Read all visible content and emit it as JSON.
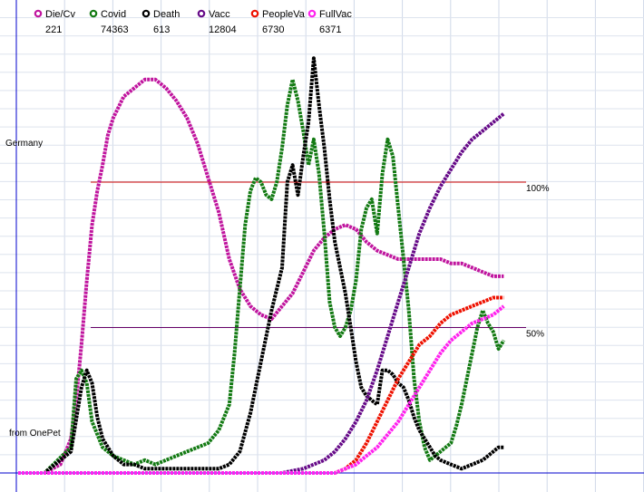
{
  "chart_data": {
    "type": "line",
    "country_label": "Germany",
    "source_label": "from OnePet",
    "x_range": [
      0,
      100
    ],
    "y_range": [
      0,
      100
    ],
    "grid": true,
    "legend_placement": "top",
    "reference_lines": [
      {
        "label": "100%",
        "y": 68,
        "color": "#cc0000"
      },
      {
        "label": "50%",
        "y": 34,
        "color": "#660066"
      }
    ],
    "series": [
      {
        "name": "Die/Cv",
        "latest": "221",
        "color": "#c0159e",
        "points": [
          [
            0,
            0
          ],
          [
            5,
            0
          ],
          [
            8,
            2
          ],
          [
            10,
            8
          ],
          [
            11,
            17
          ],
          [
            12,
            30
          ],
          [
            13,
            45
          ],
          [
            14,
            58
          ],
          [
            15,
            66
          ],
          [
            16,
            72
          ],
          [
            17,
            79
          ],
          [
            18,
            83
          ],
          [
            20,
            88
          ],
          [
            22,
            90
          ],
          [
            24,
            92
          ],
          [
            26,
            92
          ],
          [
            28,
            90
          ],
          [
            30,
            87
          ],
          [
            32,
            83
          ],
          [
            34,
            77
          ],
          [
            36,
            69
          ],
          [
            38,
            61
          ],
          [
            40,
            50
          ],
          [
            42,
            43
          ],
          [
            44,
            39
          ],
          [
            46,
            37
          ],
          [
            48,
            36
          ],
          [
            50,
            39
          ],
          [
            52,
            42
          ],
          [
            54,
            47
          ],
          [
            56,
            52
          ],
          [
            58,
            55
          ],
          [
            60,
            57
          ],
          [
            62,
            58
          ],
          [
            64,
            57
          ],
          [
            66,
            54
          ],
          [
            68,
            52
          ],
          [
            70,
            51
          ],
          [
            72,
            50
          ],
          [
            74,
            50
          ],
          [
            76,
            50
          ],
          [
            78,
            50
          ],
          [
            80,
            50
          ],
          [
            82,
            49
          ],
          [
            84,
            49
          ],
          [
            86,
            48
          ],
          [
            88,
            47
          ],
          [
            90,
            46
          ],
          [
            92,
            46
          ]
        ]
      },
      {
        "name": "Covid",
        "latest": "74363",
        "color": "#137a13",
        "points": [
          [
            0,
            0
          ],
          [
            5,
            0
          ],
          [
            10,
            6
          ],
          [
            11,
            22
          ],
          [
            12,
            24
          ],
          [
            13,
            21
          ],
          [
            14,
            12
          ],
          [
            16,
            6
          ],
          [
            18,
            4
          ],
          [
            20,
            3
          ],
          [
            22,
            2
          ],
          [
            24,
            3
          ],
          [
            26,
            2
          ],
          [
            28,
            3
          ],
          [
            30,
            4
          ],
          [
            32,
            5
          ],
          [
            34,
            6
          ],
          [
            36,
            7
          ],
          [
            38,
            10
          ],
          [
            40,
            16
          ],
          [
            41,
            28
          ],
          [
            42,
            43
          ],
          [
            43,
            58
          ],
          [
            44,
            66
          ],
          [
            45,
            69
          ],
          [
            46,
            68
          ],
          [
            47,
            65
          ],
          [
            48,
            64
          ],
          [
            49,
            68
          ],
          [
            50,
            76
          ],
          [
            51,
            86
          ],
          [
            52,
            92
          ],
          [
            53,
            87
          ],
          [
            54,
            80
          ],
          [
            55,
            72
          ],
          [
            56,
            78
          ],
          [
            57,
            70
          ],
          [
            58,
            56
          ],
          [
            59,
            40
          ],
          [
            60,
            34
          ],
          [
            61,
            32
          ],
          [
            62,
            34
          ],
          [
            63,
            38
          ],
          [
            64,
            45
          ],
          [
            65,
            57
          ],
          [
            66,
            62
          ],
          [
            67,
            64
          ],
          [
            68,
            56
          ],
          [
            69,
            70
          ],
          [
            70,
            78
          ],
          [
            71,
            74
          ],
          [
            72,
            62
          ],
          [
            73,
            50
          ],
          [
            74,
            38
          ],
          [
            75,
            22
          ],
          [
            76,
            12
          ],
          [
            77,
            6
          ],
          [
            78,
            3
          ],
          [
            79,
            4
          ],
          [
            80,
            5
          ],
          [
            82,
            7
          ],
          [
            83,
            11
          ],
          [
            84,
            16
          ],
          [
            85,
            22
          ],
          [
            86,
            28
          ],
          [
            87,
            34
          ],
          [
            88,
            38
          ],
          [
            89,
            35
          ],
          [
            90,
            33
          ],
          [
            91,
            29
          ],
          [
            92,
            31
          ]
        ]
      },
      {
        "name": "Death",
        "latest": "613",
        "color": "#000000",
        "points": [
          [
            0,
            0
          ],
          [
            5,
            0
          ],
          [
            10,
            5
          ],
          [
            12,
            20
          ],
          [
            13,
            24
          ],
          [
            14,
            21
          ],
          [
            15,
            13
          ],
          [
            16,
            8
          ],
          [
            18,
            4
          ],
          [
            20,
            2
          ],
          [
            22,
            2
          ],
          [
            24,
            1
          ],
          [
            26,
            1
          ],
          [
            28,
            1
          ],
          [
            30,
            1
          ],
          [
            32,
            1
          ],
          [
            34,
            1
          ],
          [
            36,
            1
          ],
          [
            38,
            1
          ],
          [
            40,
            2
          ],
          [
            42,
            5
          ],
          [
            44,
            14
          ],
          [
            46,
            26
          ],
          [
            48,
            38
          ],
          [
            50,
            48
          ],
          [
            51,
            68
          ],
          [
            52,
            72
          ],
          [
            53,
            65
          ],
          [
            54,
            74
          ],
          [
            55,
            82
          ],
          [
            56,
            97
          ],
          [
            57,
            86
          ],
          [
            58,
            76
          ],
          [
            59,
            64
          ],
          [
            60,
            54
          ],
          [
            61,
            48
          ],
          [
            62,
            42
          ],
          [
            63,
            34
          ],
          [
            64,
            26
          ],
          [
            65,
            20
          ],
          [
            66,
            18
          ],
          [
            67,
            17
          ],
          [
            68,
            16
          ],
          [
            69,
            24
          ],
          [
            70,
            24
          ],
          [
            71,
            23
          ],
          [
            72,
            21
          ],
          [
            73,
            20
          ],
          [
            74,
            17
          ],
          [
            75,
            13
          ],
          [
            76,
            10
          ],
          [
            77,
            8
          ],
          [
            78,
            6
          ],
          [
            79,
            4
          ],
          [
            80,
            3
          ],
          [
            82,
            2
          ],
          [
            84,
            1
          ],
          [
            86,
            2
          ],
          [
            88,
            3
          ],
          [
            90,
            5
          ],
          [
            91,
            6
          ],
          [
            92,
            6
          ]
        ]
      },
      {
        "name": "Vacc",
        "latest": "12804",
        "color": "#660a88",
        "points": [
          [
            0,
            0
          ],
          [
            10,
            0
          ],
          [
            20,
            0
          ],
          [
            30,
            0
          ],
          [
            40,
            0
          ],
          [
            50,
            0
          ],
          [
            52,
            0.5
          ],
          [
            54,
            1
          ],
          [
            56,
            2
          ],
          [
            58,
            3
          ],
          [
            60,
            5
          ],
          [
            62,
            8
          ],
          [
            64,
            12
          ],
          [
            66,
            17
          ],
          [
            68,
            24
          ],
          [
            70,
            32
          ],
          [
            72,
            40
          ],
          [
            74,
            48
          ],
          [
            76,
            56
          ],
          [
            78,
            62
          ],
          [
            80,
            67
          ],
          [
            82,
            71
          ],
          [
            84,
            75
          ],
          [
            86,
            78
          ],
          [
            88,
            80
          ],
          [
            90,
            82
          ],
          [
            92,
            84
          ]
        ]
      },
      {
        "name": "PeopleVa",
        "latest": "6730",
        "color": "#ee1100",
        "points": [
          [
            0,
            0
          ],
          [
            60,
            0
          ],
          [
            62,
            1
          ],
          [
            64,
            3
          ],
          [
            66,
            7
          ],
          [
            68,
            12
          ],
          [
            70,
            17
          ],
          [
            72,
            22
          ],
          [
            74,
            26
          ],
          [
            76,
            30
          ],
          [
            78,
            32
          ],
          [
            80,
            35
          ],
          [
            82,
            37
          ],
          [
            84,
            38
          ],
          [
            86,
            39
          ],
          [
            88,
            40
          ],
          [
            90,
            41
          ],
          [
            92,
            41
          ]
        ]
      },
      {
        "name": "FullVac",
        "latest": "6371",
        "color": "#ff22ee",
        "points": [
          [
            0,
            0
          ],
          [
            60,
            0
          ],
          [
            62,
            1
          ],
          [
            64,
            2
          ],
          [
            66,
            4
          ],
          [
            68,
            6
          ],
          [
            70,
            9
          ],
          [
            72,
            12
          ],
          [
            74,
            16
          ],
          [
            76,
            20
          ],
          [
            78,
            24
          ],
          [
            80,
            28
          ],
          [
            82,
            31
          ],
          [
            84,
            33
          ],
          [
            86,
            35
          ],
          [
            88,
            36
          ],
          [
            90,
            37
          ],
          [
            92,
            39
          ]
        ]
      }
    ]
  }
}
